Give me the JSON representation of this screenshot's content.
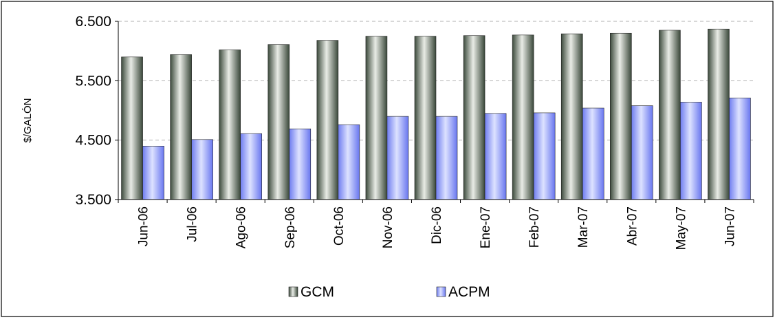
{
  "chart_data": {
    "type": "bar",
    "title": "",
    "xlabel": "",
    "ylabel": "$/GALÓN",
    "ylim": [
      3500,
      6500
    ],
    "yticks": [
      3500,
      4500,
      5500,
      6500
    ],
    "ytick_labels": [
      "3.500",
      "4.500",
      "5.500",
      "6.500"
    ],
    "grid": "horizontal dashed",
    "legend_position": "bottom",
    "categories": [
      "Jun-06",
      "Jul-06",
      "Ago-06",
      "Sep-06",
      "Oct-06",
      "Nov-06",
      "Dic-06",
      "Ene-07",
      "Feb-07",
      "Mar-07",
      "Abr-07",
      "May-07",
      "Jun-07"
    ],
    "series": [
      {
        "name": "GCM",
        "color": "#6a7a6a",
        "values": [
          5900,
          5940,
          6020,
          6110,
          6180,
          6250,
          6250,
          6260,
          6270,
          6290,
          6300,
          6350,
          6370
        ]
      },
      {
        "name": "ACPM",
        "color": "#8f9cf5",
        "values": [
          4400,
          4510,
          4610,
          4690,
          4760,
          4900,
          4900,
          4950,
          4960,
          5040,
          5080,
          5140,
          5210
        ]
      }
    ]
  }
}
